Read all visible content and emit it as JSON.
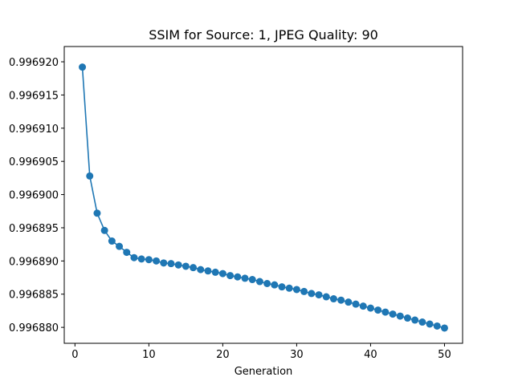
{
  "chart_data": {
    "type": "line",
    "title": "SSIM for Source: 1, JPEG Quality: 90",
    "xlabel": "Generation",
    "ylabel": "",
    "xlim": [
      -1.45,
      52.45
    ],
    "ylim": [
      0.9968776,
      0.9969223
    ],
    "x_ticks": [
      0,
      10,
      20,
      30,
      40,
      50
    ],
    "y_ticks": [
      0.99688,
      0.996885,
      0.99689,
      0.996895,
      0.9969,
      0.996905,
      0.99691,
      0.996915,
      0.99692
    ],
    "x_tick_labels": [
      "0",
      "10",
      "20",
      "30",
      "40",
      "50"
    ],
    "y_tick_labels": [
      "0.996880",
      "0.996885",
      "0.996890",
      "0.996895",
      "0.996900",
      "0.996905",
      "0.996910",
      "0.996915",
      "0.996920"
    ],
    "grid": false,
    "color": "#1f77b4",
    "marker": "circle",
    "series": [
      {
        "x": [
          1,
          2,
          3,
          4,
          5,
          6,
          7,
          8,
          9,
          10,
          11,
          12,
          13,
          14,
          15,
          16,
          17,
          18,
          19,
          20,
          21,
          22,
          23,
          24,
          25,
          26,
          27,
          28,
          29,
          30,
          31,
          32,
          33,
          34,
          35,
          36,
          37,
          38,
          39,
          40,
          41,
          42,
          43,
          44,
          45,
          46,
          47,
          48,
          49,
          50
        ],
        "values": [
          0.9969192,
          0.9969028,
          0.9968972,
          0.9968946,
          0.996893,
          0.9968922,
          0.9968913,
          0.9968905,
          0.9968903,
          0.9968902,
          0.99689,
          0.9968897,
          0.9968896,
          0.9968894,
          0.9968892,
          0.996889,
          0.9968887,
          0.9968885,
          0.9968883,
          0.9968881,
          0.9968878,
          0.9968876,
          0.9968874,
          0.9968872,
          0.9968869,
          0.9968866,
          0.9968864,
          0.9968861,
          0.9968859,
          0.9968857,
          0.9968854,
          0.9968851,
          0.9968849,
          0.9968846,
          0.9968843,
          0.9968841,
          0.9968838,
          0.9968835,
          0.9968832,
          0.9968829,
          0.9968826,
          0.9968823,
          0.996882,
          0.9968817,
          0.9968814,
          0.9968811,
          0.9968808,
          0.9968805,
          0.9968802,
          0.9968799
        ]
      }
    ]
  }
}
